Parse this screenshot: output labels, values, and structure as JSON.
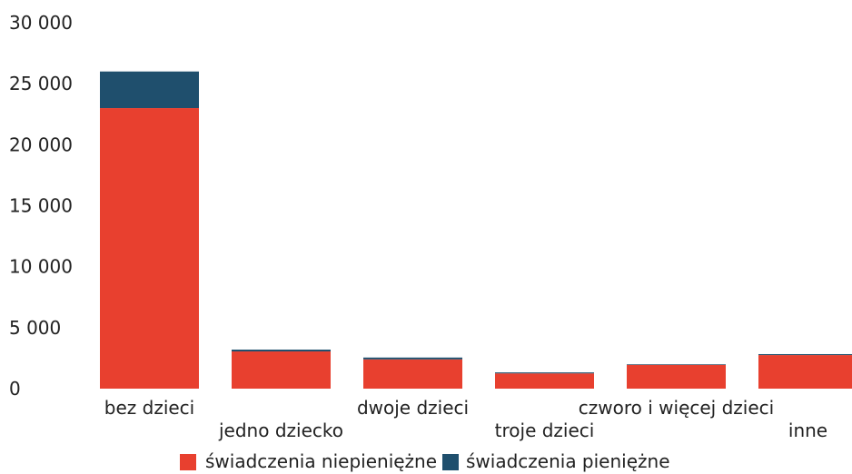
{
  "chart_data": {
    "type": "bar",
    "stacked": true,
    "categories": [
      "bez dzieci",
      "jedno dziecko",
      "dwoje dzieci",
      "troje dzieci",
      "czworo i więcej dzieci",
      "inne"
    ],
    "series": [
      {
        "name": "świadczenia niepieniężne",
        "color": "#e8402f",
        "values": [
          23000,
          3050,
          2400,
          1250,
          1950,
          2750
        ]
      },
      {
        "name": "świadczenia pieniężne",
        "color": "#1f4f6d",
        "values": [
          3000,
          150,
          150,
          80,
          50,
          80
        ]
      }
    ],
    "y_ticks": [
      "0",
      "5 000",
      "10 000",
      "15 000",
      "20 000",
      "25 000",
      "30 000"
    ],
    "ylim": [
      0,
      30000
    ],
    "legend_position": "bottom",
    "grid": false,
    "title": "",
    "xlabel": "",
    "ylabel": ""
  }
}
